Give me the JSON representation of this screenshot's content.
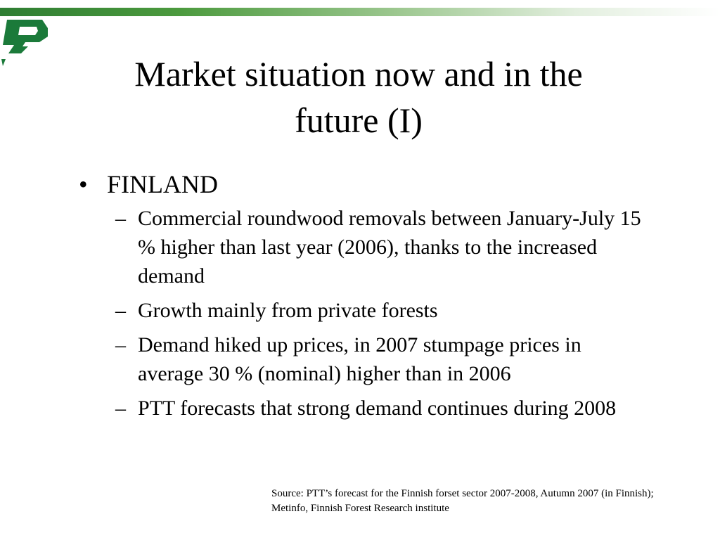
{
  "slide": {
    "title_line1": "Market situation now and in the",
    "title_line2": "future (I)",
    "bullet_marker": "•",
    "sub_marker": "–",
    "main_bullet": "FINLAND",
    "sub_bullets": [
      "Commercial roundwood removals between January-July 15 % higher than last year (2006), thanks to the increased demand",
      "Growth mainly from private forests",
      "Demand hiked up prices, in 2007 stumpage prices in average 30 % (nominal) higher than in 2006",
      "PTT forecasts that strong demand continues during 2008"
    ],
    "source": "Source: PTT’s forecast for the Finnish forset sector 2007-2008, Autumn 2007 (in Finnish); Metinfo, Finnish Forest Research institute"
  },
  "colors": {
    "accent_green": "#2e7d32",
    "logo_green": "#1b7a3a",
    "text": "#000000",
    "background": "#ffffff"
  },
  "icons": {
    "logo": "green-stylized-logo"
  }
}
